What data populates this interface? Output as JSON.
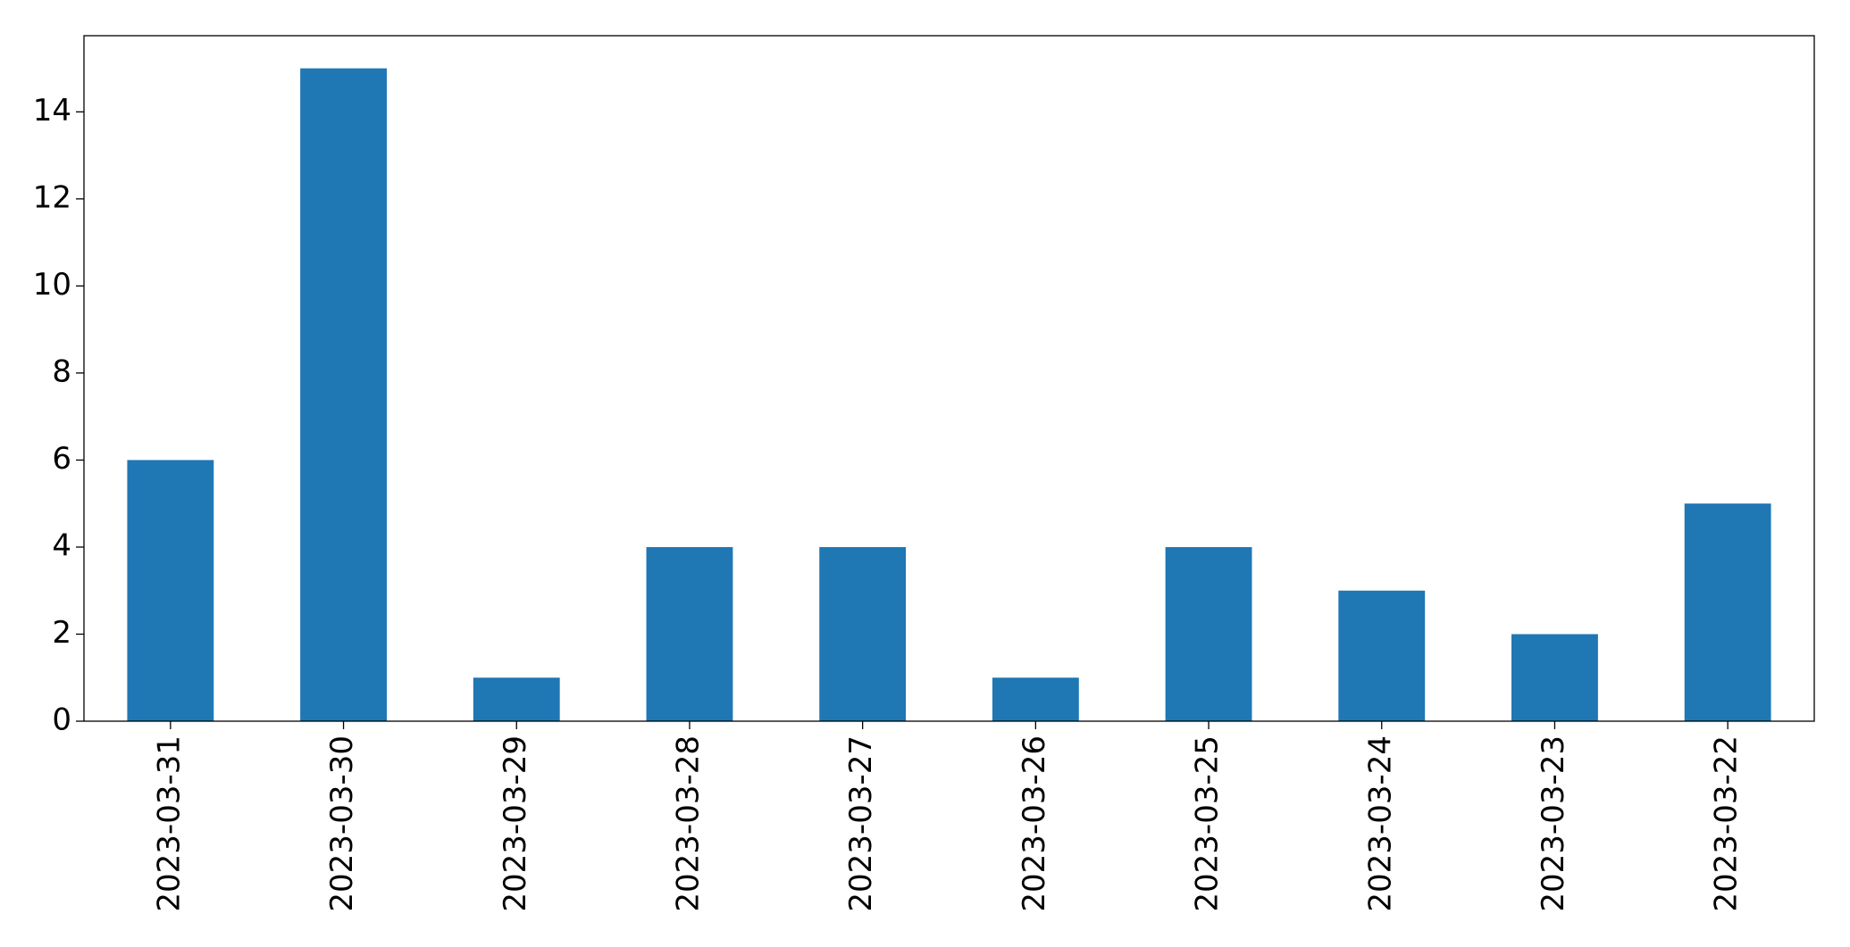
{
  "chart_data": {
    "type": "bar",
    "categories": [
      "2023-03-31",
      "2023-03-30",
      "2023-03-29",
      "2023-03-28",
      "2023-03-27",
      "2023-03-26",
      "2023-03-25",
      "2023-03-24",
      "2023-03-23",
      "2023-03-22"
    ],
    "values": [
      6,
      15,
      1,
      4,
      4,
      1,
      4,
      3,
      2,
      5
    ],
    "color": "#1f77b4",
    "ylim": [
      0,
      15.75
    ],
    "yticks": [
      0,
      2,
      4,
      6,
      8,
      10,
      12,
      14
    ],
    "grid": false
  }
}
